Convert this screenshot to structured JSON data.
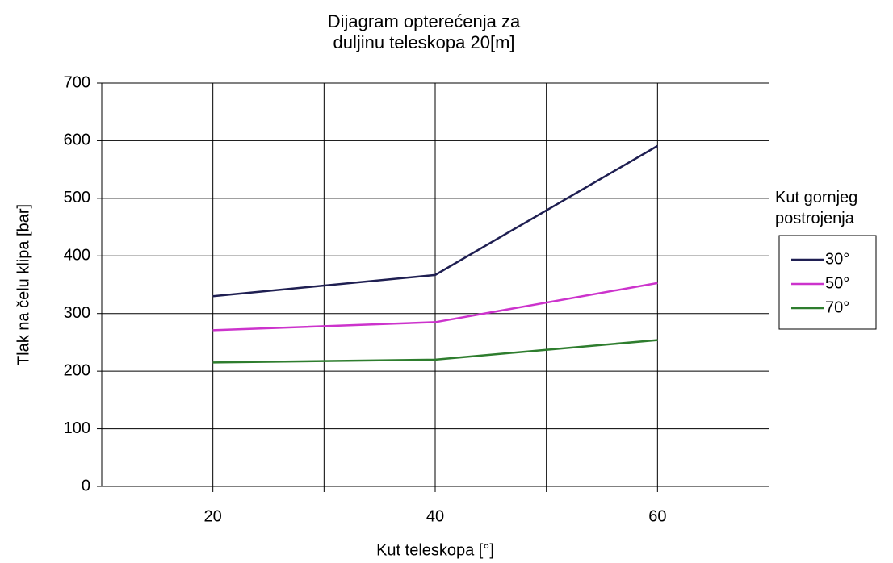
{
  "chart_data": {
    "type": "line",
    "title": "Dijagram opterećenja za duljinu teleskopa 20[m]",
    "x_label": "Kut teleskopa [°]",
    "y_label": "Tlak na čelu klipa [bar]",
    "legend_title": "Kut gornjeg postrojenja",
    "legend_position": "right",
    "x": [
      20,
      40,
      60
    ],
    "series": [
      {
        "name": "30°",
        "color": "#1f1f52",
        "values": [
          330,
          367,
          591
        ]
      },
      {
        "name": "50°",
        "color": "#cc33cc",
        "values": [
          271,
          285,
          353
        ]
      },
      {
        "name": "70°",
        "color": "#2e7d2e",
        "values": [
          215,
          220,
          254
        ]
      }
    ],
    "xlim": [
      10,
      70
    ],
    "xticks": [
      20,
      40,
      60
    ],
    "xgrid": [
      20,
      30,
      40,
      50,
      60
    ],
    "ylim": [
      0,
      700
    ],
    "yticks": [
      0,
      100,
      200,
      300,
      400,
      500,
      600,
      700
    ],
    "grid": true
  }
}
